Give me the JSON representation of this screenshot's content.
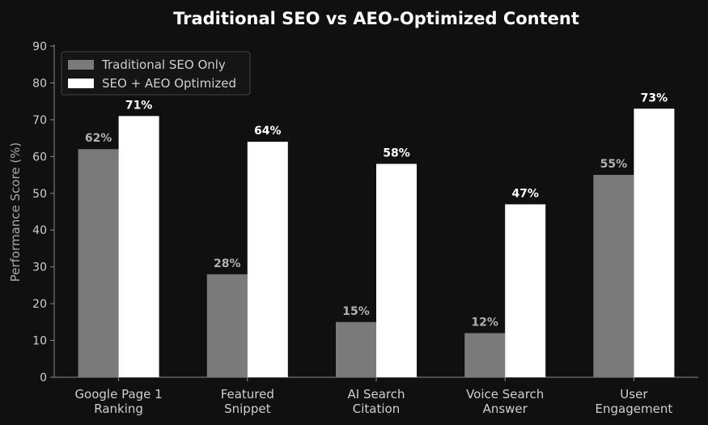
{
  "chart_data": {
    "type": "bar",
    "title": "Traditional SEO vs AEO-Optimized Content",
    "xlabel": "",
    "ylabel": "Performance Score (%)",
    "ylim": [
      0,
      90
    ],
    "yticks": [
      0,
      10,
      20,
      30,
      40,
      50,
      60,
      70,
      80,
      90
    ],
    "categories": [
      [
        "Google Page 1",
        "Ranking"
      ],
      [
        "Featured",
        "Snippet"
      ],
      [
        "AI Search",
        "Citation"
      ],
      [
        "Voice Search",
        "Answer"
      ],
      [
        "User",
        "Engagement"
      ]
    ],
    "series": [
      {
        "name": "Traditional SEO Only",
        "values": [
          62,
          28,
          15,
          12,
          55
        ],
        "labels": [
          "62%",
          "28%",
          "15%",
          "12%",
          "55%"
        ],
        "color": "#7a7a7a",
        "label_color": "#b0b0b0"
      },
      {
        "name": "SEO + AEO Optimized",
        "values": [
          71,
          64,
          58,
          47,
          73
        ],
        "labels": [
          "71%",
          "64%",
          "58%",
          "47%",
          "73%"
        ],
        "color": "#ffffff",
        "label_color": "#ffffff"
      }
    ],
    "legend_position": "top-left",
    "grid": false,
    "colors": {
      "background": "#101010",
      "axis": "#8a8a8a",
      "text": "#cfcfcf",
      "title": "#ffffff"
    }
  }
}
